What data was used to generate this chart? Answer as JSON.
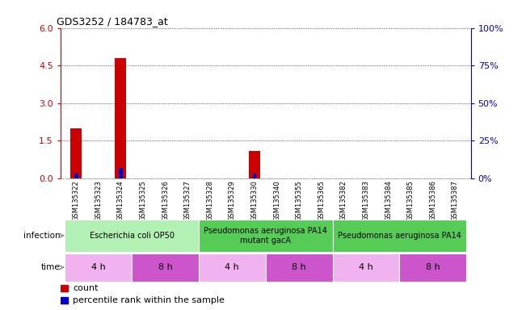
{
  "title": "GDS3252 / 184783_at",
  "samples": [
    "GSM135322",
    "GSM135323",
    "GSM135324",
    "GSM135325",
    "GSM135326",
    "GSM135327",
    "GSM135328",
    "GSM135329",
    "GSM135330",
    "GSM135340",
    "GSM135355",
    "GSM135365",
    "GSM135382",
    "GSM135383",
    "GSM135384",
    "GSM135385",
    "GSM135386",
    "GSM135387"
  ],
  "count_values": [
    2.0,
    0,
    4.8,
    0,
    0,
    0,
    0,
    0,
    1.1,
    0,
    0,
    0,
    0,
    0,
    0,
    0,
    0,
    0
  ],
  "percentile_values": [
    3,
    0,
    7,
    0,
    0,
    0,
    0,
    0,
    3,
    0,
    0,
    0,
    0,
    0,
    0,
    0,
    0,
    0
  ],
  "ylim_left": [
    0,
    6
  ],
  "ylim_right": [
    0,
    100
  ],
  "yticks_left": [
    0,
    1.5,
    3,
    4.5,
    6
  ],
  "yticks_right": [
    0,
    25,
    50,
    75,
    100
  ],
  "infection_groups": [
    {
      "label": "Escherichia coli OP50",
      "start": 0,
      "end": 6,
      "color": "#b3f0b3"
    },
    {
      "label": "Pseudomonas aeruginosa PA14\nmutant gacA",
      "start": 6,
      "end": 12,
      "color": "#55cc55"
    },
    {
      "label": "Pseudomonas aeruginosa PA14",
      "start": 12,
      "end": 18,
      "color": "#55cc55"
    }
  ],
  "time_groups": [
    {
      "label": "4 h",
      "start": 0,
      "end": 3,
      "color": "#f0b3f0"
    },
    {
      "label": "8 h",
      "start": 3,
      "end": 6,
      "color": "#cc55cc"
    },
    {
      "label": "4 h",
      "start": 6,
      "end": 9,
      "color": "#f0b3f0"
    },
    {
      "label": "8 h",
      "start": 9,
      "end": 12,
      "color": "#cc55cc"
    },
    {
      "label": "4 h",
      "start": 12,
      "end": 15,
      "color": "#f0b3f0"
    },
    {
      "label": "8 h",
      "start": 15,
      "end": 18,
      "color": "#cc55cc"
    }
  ],
  "count_color": "#cc0000",
  "percentile_color": "#0000cc",
  "bg_color": "#ffffff",
  "tick_color_left": "#cc0000",
  "tick_color_right": "#0000cc",
  "label_color_left": "infection",
  "label_color_right": "time"
}
